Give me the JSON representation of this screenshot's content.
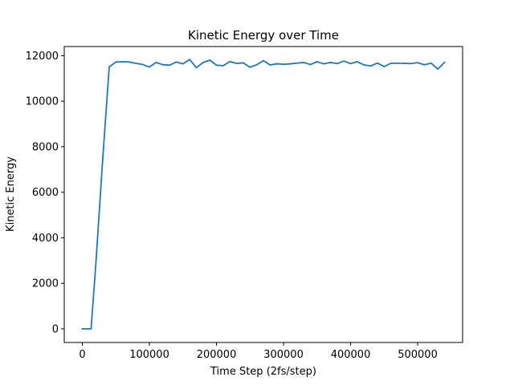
{
  "chart_data": {
    "type": "line",
    "title": "Kinetic Energy over Time",
    "xlabel": "Time Step (2fs/step)",
    "ylabel": "Kinetic Energy",
    "xlim": [
      -27000,
      567000
    ],
    "ylim": [
      -600,
      12400
    ],
    "xticks": [
      0,
      100000,
      200000,
      300000,
      400000,
      500000
    ],
    "xtick_labels": [
      "0",
      "100000",
      "200000",
      "300000",
      "400000",
      "500000"
    ],
    "yticks": [
      0,
      2000,
      4000,
      6000,
      8000,
      10000,
      12000
    ],
    "ytick_labels": [
      "0",
      "2000",
      "4000",
      "6000",
      "8000",
      "10000",
      "12000"
    ],
    "grid": false,
    "legend": "none",
    "series": [
      {
        "color": "#1f77b4",
        "points": [
          [
            0,
            0
          ],
          [
            10000,
            0
          ],
          [
            13000,
            0
          ],
          [
            20000,
            2800
          ],
          [
            30000,
            7300
          ],
          [
            40000,
            11500
          ],
          [
            50000,
            11720
          ],
          [
            60000,
            11730
          ],
          [
            70000,
            11720
          ],
          [
            80000,
            11660
          ],
          [
            90000,
            11610
          ],
          [
            100000,
            11500
          ],
          [
            110000,
            11700
          ],
          [
            120000,
            11600
          ],
          [
            130000,
            11580
          ],
          [
            140000,
            11720
          ],
          [
            150000,
            11640
          ],
          [
            160000,
            11830
          ],
          [
            170000,
            11470
          ],
          [
            180000,
            11700
          ],
          [
            190000,
            11800
          ],
          [
            200000,
            11580
          ],
          [
            210000,
            11560
          ],
          [
            220000,
            11740
          ],
          [
            230000,
            11660
          ],
          [
            240000,
            11680
          ],
          [
            250000,
            11490
          ],
          [
            260000,
            11600
          ],
          [
            270000,
            11780
          ],
          [
            280000,
            11590
          ],
          [
            290000,
            11640
          ],
          [
            300000,
            11620
          ],
          [
            310000,
            11640
          ],
          [
            320000,
            11670
          ],
          [
            330000,
            11700
          ],
          [
            340000,
            11610
          ],
          [
            350000,
            11730
          ],
          [
            360000,
            11640
          ],
          [
            370000,
            11700
          ],
          [
            380000,
            11650
          ],
          [
            390000,
            11760
          ],
          [
            400000,
            11650
          ],
          [
            410000,
            11730
          ],
          [
            420000,
            11590
          ],
          [
            430000,
            11550
          ],
          [
            440000,
            11670
          ],
          [
            450000,
            11520
          ],
          [
            460000,
            11660
          ],
          [
            470000,
            11670
          ],
          [
            480000,
            11660
          ],
          [
            490000,
            11650
          ],
          [
            500000,
            11690
          ],
          [
            510000,
            11600
          ],
          [
            520000,
            11670
          ],
          [
            530000,
            11410
          ],
          [
            540000,
            11700
          ]
        ]
      }
    ]
  }
}
